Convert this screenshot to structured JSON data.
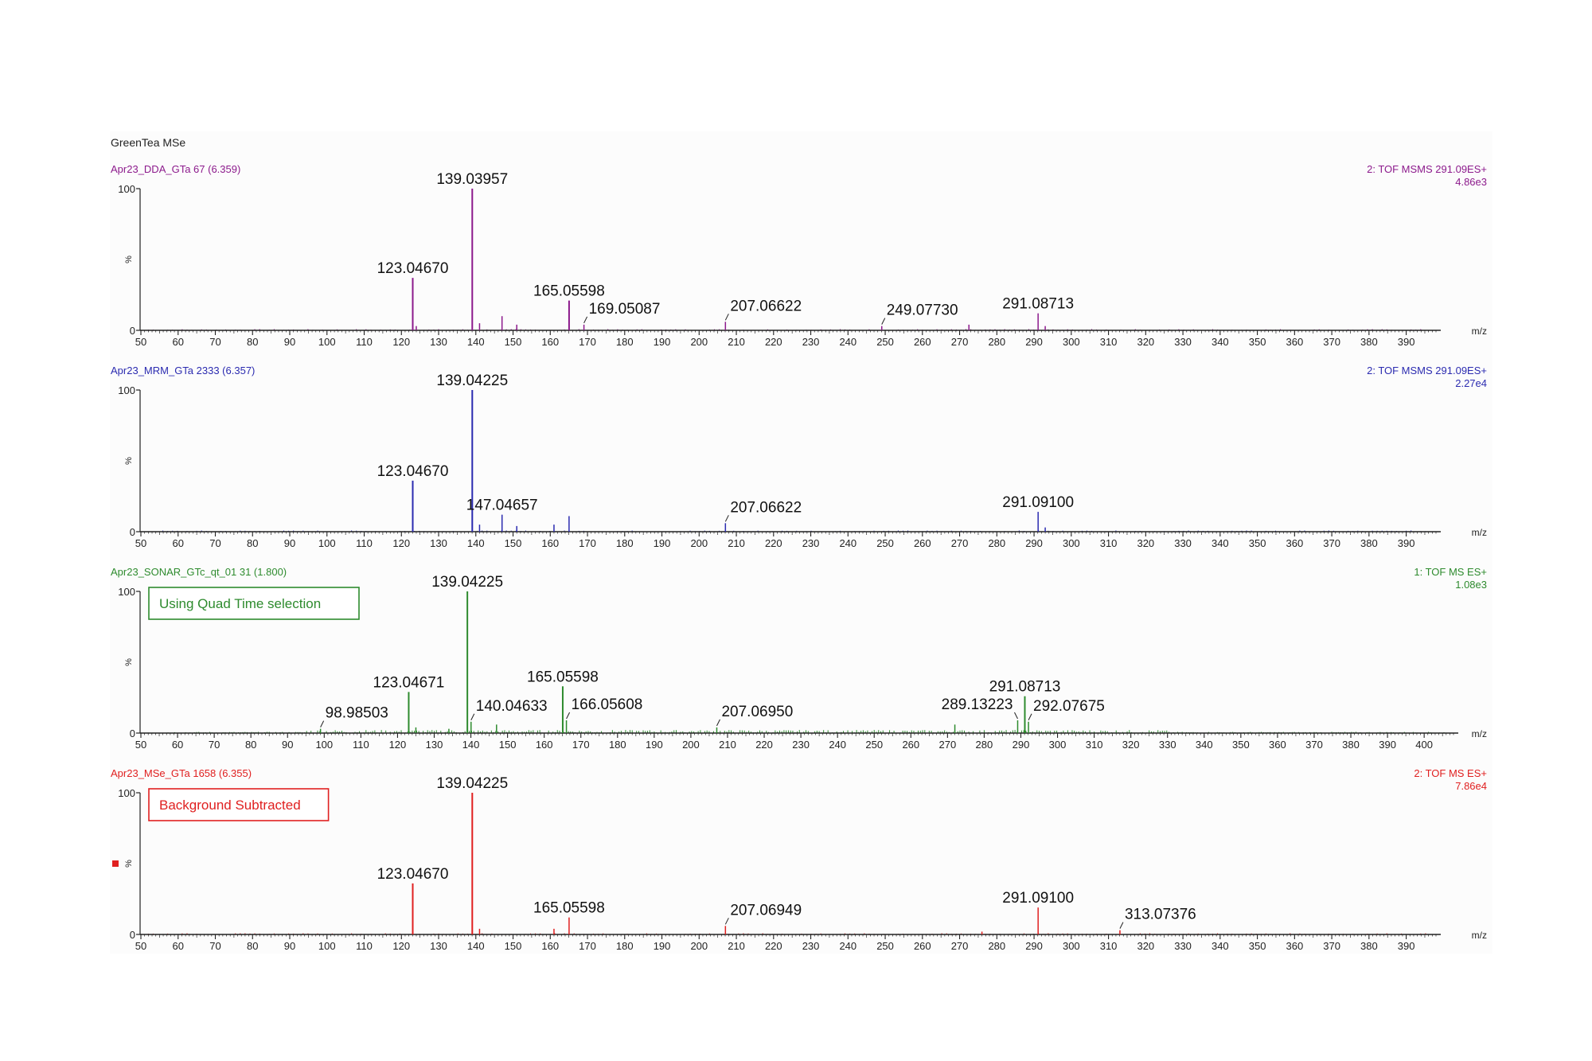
{
  "figure_title": "GreenTea MSe",
  "axis_unit": "m/z",
  "y_axis": {
    "ticks": [
      "0",
      "100"
    ],
    "unit_label": "%"
  },
  "chart_data": [
    {
      "type": "bar",
      "scan_label": "Apr23_DDA_GTa 67 (6.359)",
      "function_label": "2: TOF MSMS 291.09ES+",
      "intensity_label": "4.86e3",
      "color": "#8c1a8c",
      "xlim": [
        50,
        398
      ],
      "ylim": [
        0,
        100
      ],
      "x_ticks": [
        50,
        60,
        70,
        80,
        90,
        100,
        110,
        120,
        130,
        140,
        150,
        160,
        170,
        180,
        190,
        200,
        210,
        220,
        230,
        240,
        250,
        260,
        270,
        280,
        290,
        300,
        310,
        320,
        330,
        340,
        350,
        360,
        370,
        380,
        390
      ],
      "peaks": [
        {
          "mz": 139.03957,
          "intensity": 100,
          "label": "139.03957"
        },
        {
          "mz": 123.0467,
          "intensity": 37,
          "label": "123.04670"
        },
        {
          "mz": 165.05598,
          "intensity": 21,
          "label": "165.05598"
        },
        {
          "mz": 147.04,
          "intensity": 10,
          "label": ""
        },
        {
          "mz": 169.05087,
          "intensity": 4,
          "label": "169.05087"
        },
        {
          "mz": 207.06622,
          "intensity": 6,
          "label": "207.06622"
        },
        {
          "mz": 249.0773,
          "intensity": 3,
          "label": "249.07730"
        },
        {
          "mz": 291.08713,
          "intensity": 12,
          "label": "291.08713"
        },
        {
          "mz": 272.5,
          "intensity": 4,
          "label": ""
        },
        {
          "mz": 141,
          "intensity": 5,
          "label": ""
        },
        {
          "mz": 151,
          "intensity": 4,
          "label": ""
        },
        {
          "mz": 124,
          "intensity": 3,
          "label": ""
        },
        {
          "mz": 293,
          "intensity": 3,
          "label": ""
        }
      ],
      "annotation_box": null
    },
    {
      "type": "bar",
      "scan_label": "Apr23_MRM_GTa 2333 (6.357)",
      "function_label": "2: TOF MSMS 291.09ES+",
      "intensity_label": "2.27e4",
      "color": "#2b2bb0",
      "xlim": [
        50,
        398
      ],
      "ylim": [
        0,
        100
      ],
      "x_ticks": [
        50,
        60,
        70,
        80,
        90,
        100,
        110,
        120,
        130,
        140,
        150,
        160,
        170,
        180,
        190,
        200,
        210,
        220,
        230,
        240,
        250,
        260,
        270,
        280,
        290,
        300,
        310,
        320,
        330,
        340,
        350,
        360,
        370,
        380,
        390
      ],
      "peaks": [
        {
          "mz": 139.04225,
          "intensity": 100,
          "label": "139.04225"
        },
        {
          "mz": 123.0467,
          "intensity": 36,
          "label": "123.04670"
        },
        {
          "mz": 147.04657,
          "intensity": 12,
          "label": "147.04657"
        },
        {
          "mz": 165.05,
          "intensity": 11,
          "label": ""
        },
        {
          "mz": 161,
          "intensity": 5,
          "label": ""
        },
        {
          "mz": 207.06622,
          "intensity": 6,
          "label": "207.06622"
        },
        {
          "mz": 291.091,
          "intensity": 14,
          "label": "291.09100"
        },
        {
          "mz": 141,
          "intensity": 5,
          "label": ""
        },
        {
          "mz": 151,
          "intensity": 4,
          "label": ""
        },
        {
          "mz": 293,
          "intensity": 3,
          "label": ""
        }
      ],
      "annotation_box": null
    },
    {
      "type": "bar",
      "scan_label": "Apr23_SONAR_GTc_qt_01 31 (1.800)",
      "function_label": "1: TOF MS ES+",
      "intensity_label": "1.08e3",
      "color": "#2e8b2e",
      "xlim": [
        50,
        408
      ],
      "ylim": [
        0,
        100
      ],
      "x_ticks": [
        50,
        60,
        70,
        80,
        90,
        100,
        110,
        120,
        130,
        140,
        150,
        160,
        170,
        180,
        190,
        200,
        210,
        220,
        230,
        240,
        250,
        260,
        270,
        280,
        290,
        300,
        310,
        320,
        330,
        340,
        350,
        360,
        370,
        380,
        390,
        400
      ],
      "peaks": [
        {
          "mz": 139.04225,
          "intensity": 100,
          "label": "139.04225"
        },
        {
          "mz": 123.04671,
          "intensity": 29,
          "label": "123.04671"
        },
        {
          "mz": 165.05598,
          "intensity": 33,
          "label": "165.05598"
        },
        {
          "mz": 140.04633,
          "intensity": 8,
          "label": "140.04633"
        },
        {
          "mz": 166.05608,
          "intensity": 9,
          "label": "166.05608"
        },
        {
          "mz": 98.98503,
          "intensity": 3,
          "label": "98.98503"
        },
        {
          "mz": 207.0695,
          "intensity": 4,
          "label": "207.06950"
        },
        {
          "mz": 289.13223,
          "intensity": 9,
          "label": "289.13223"
        },
        {
          "mz": 291.08713,
          "intensity": 26,
          "label": "291.08713"
        },
        {
          "mz": 292.07675,
          "intensity": 8,
          "label": "292.07675"
        },
        {
          "mz": 147,
          "intensity": 6,
          "label": ""
        },
        {
          "mz": 125,
          "intensity": 4,
          "label": ""
        },
        {
          "mz": 272,
          "intensity": 6,
          "label": ""
        },
        {
          "mz": 134,
          "intensity": 3,
          "label": ""
        }
      ],
      "annotation_box": {
        "text": "Using Quad Time selection"
      }
    },
    {
      "type": "bar",
      "scan_label": "Apr23_MSe_GTa 1658 (6.355)",
      "function_label": "2: TOF MS ES+",
      "intensity_label": "7.86e4",
      "color": "#e02020",
      "xlim": [
        50,
        398
      ],
      "ylim": [
        0,
        100
      ],
      "x_ticks": [
        50,
        60,
        70,
        80,
        90,
        100,
        110,
        120,
        130,
        140,
        150,
        160,
        170,
        180,
        190,
        200,
        210,
        220,
        230,
        240,
        250,
        260,
        270,
        280,
        290,
        300,
        310,
        320,
        330,
        340,
        350,
        360,
        370,
        380,
        390
      ],
      "peaks": [
        {
          "mz": 139.04225,
          "intensity": 100,
          "label": "139.04225"
        },
        {
          "mz": 123.0467,
          "intensity": 36,
          "label": "123.04670"
        },
        {
          "mz": 165.05598,
          "intensity": 12,
          "label": "165.05598"
        },
        {
          "mz": 207.06949,
          "intensity": 6,
          "label": "207.06949"
        },
        {
          "mz": 291.091,
          "intensity": 19,
          "label": "291.09100"
        },
        {
          "mz": 313.07376,
          "intensity": 3,
          "label": "313.07376"
        },
        {
          "mz": 161,
          "intensity": 4,
          "label": ""
        },
        {
          "mz": 141,
          "intensity": 4,
          "label": ""
        },
        {
          "mz": 276,
          "intensity": 2,
          "label": ""
        }
      ],
      "annotation_box": {
        "text": "Background Subtracted"
      }
    }
  ]
}
